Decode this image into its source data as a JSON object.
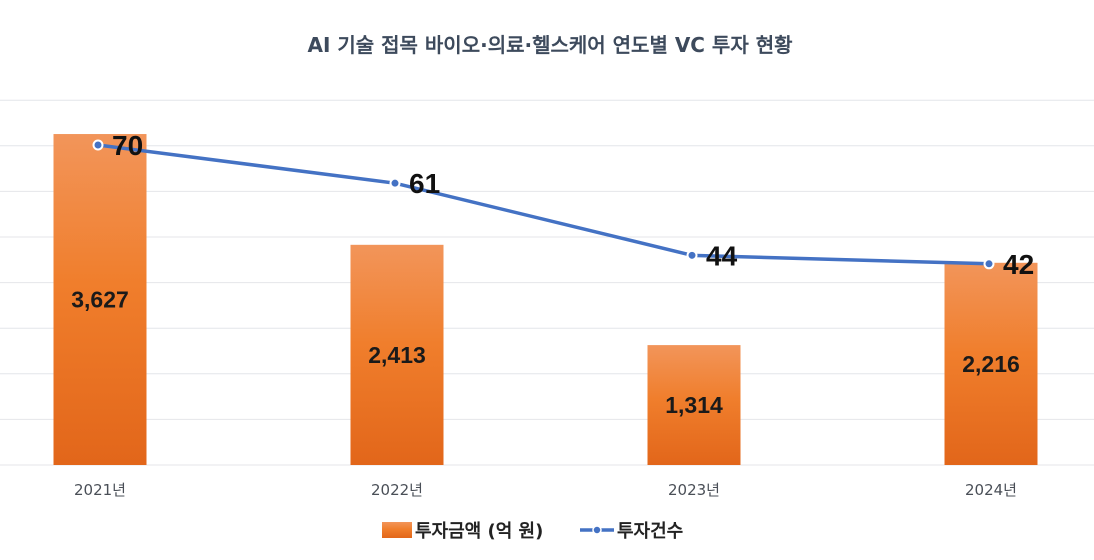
{
  "chart_data": {
    "type": "bar",
    "title": "AI 기술 접목 바이오·의료·헬스케어 연도별 VC 투자 현황",
    "categories": [
      "2021년",
      "2022년",
      "2023년",
      "2024년"
    ],
    "series": [
      {
        "name": "투자금액 (억 원)",
        "type": "bar",
        "values": [
          3627,
          2413,
          1314,
          2216
        ],
        "labels": [
          "3,627",
          "2,413",
          "1,314",
          "2,216"
        ],
        "color": "#f07d2a"
      },
      {
        "name": "투자건수",
        "type": "line",
        "values": [
          70,
          61,
          44,
          42
        ],
        "labels": [
          "70",
          "61",
          "44",
          "42"
        ],
        "color": "#4472c4"
      }
    ],
    "grid": true,
    "legend_position": "bottom"
  }
}
